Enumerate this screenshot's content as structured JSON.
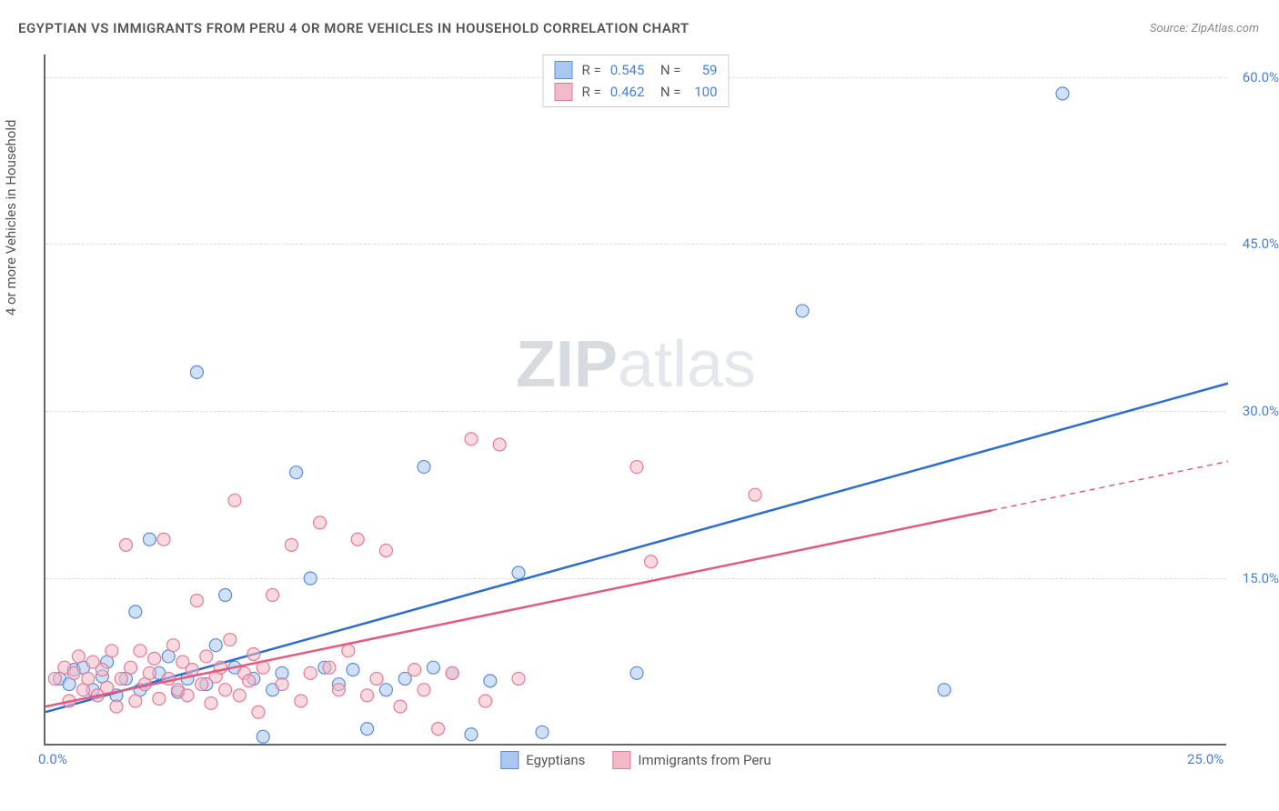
{
  "title": "EGYPTIAN VS IMMIGRANTS FROM PERU 4 OR MORE VEHICLES IN HOUSEHOLD CORRELATION CHART",
  "source_prefix": "Source: ",
  "source": "ZipAtlas.com",
  "y_axis_label": "4 or more Vehicles in Household",
  "watermark_a": "ZIP",
  "watermark_b": "atlas",
  "chart": {
    "type": "scatter",
    "xlim": [
      0,
      25
    ],
    "ylim": [
      0,
      62
    ],
    "x_ticks": [
      {
        "v": 0,
        "label": "0.0%"
      },
      {
        "v": 25,
        "label": "25.0%"
      }
    ],
    "y_ticks": [
      {
        "v": 15,
        "label": "15.0%"
      },
      {
        "v": 30,
        "label": "30.0%"
      },
      {
        "v": 45,
        "label": "45.0%"
      },
      {
        "v": 60,
        "label": "60.0%"
      }
    ],
    "grid_color": "#dddddd",
    "background": "#ffffff",
    "marker_radius": 7,
    "marker_opacity": 0.55,
    "series": [
      {
        "name": "Egyptians",
        "fill": "#a9c7ef",
        "stroke": "#5b8dd6",
        "line_color": "#2d6cd0",
        "R": "0.545",
        "N": "59",
        "trend": {
          "x1": 0,
          "y1": 3.0,
          "x2": 25,
          "y2": 32.5,
          "dash_from_x": 25
        },
        "points": [
          [
            0.3,
            6.0
          ],
          [
            0.5,
            5.5
          ],
          [
            0.6,
            6.8
          ],
          [
            0.8,
            7.0
          ],
          [
            1.0,
            5.0
          ],
          [
            1.2,
            6.2
          ],
          [
            1.3,
            7.5
          ],
          [
            1.5,
            4.5
          ],
          [
            1.7,
            6.0
          ],
          [
            1.9,
            12.0
          ],
          [
            2.0,
            5.0
          ],
          [
            2.2,
            18.5
          ],
          [
            2.4,
            6.5
          ],
          [
            2.6,
            8.0
          ],
          [
            2.8,
            4.8
          ],
          [
            3.0,
            6.0
          ],
          [
            3.2,
            33.5
          ],
          [
            3.4,
            5.5
          ],
          [
            3.6,
            9.0
          ],
          [
            3.8,
            13.5
          ],
          [
            4.0,
            7.0
          ],
          [
            4.4,
            6.0
          ],
          [
            4.6,
            0.8
          ],
          [
            4.8,
            5.0
          ],
          [
            5.0,
            6.5
          ],
          [
            5.3,
            24.5
          ],
          [
            5.6,
            15.0
          ],
          [
            5.9,
            7.0
          ],
          [
            6.2,
            5.5
          ],
          [
            6.5,
            6.8
          ],
          [
            6.8,
            1.5
          ],
          [
            7.2,
            5.0
          ],
          [
            7.6,
            6.0
          ],
          [
            8.0,
            25.0
          ],
          [
            8.2,
            7.0
          ],
          [
            8.6,
            6.5
          ],
          [
            9.0,
            1.0
          ],
          [
            9.4,
            5.8
          ],
          [
            10.0,
            15.5
          ],
          [
            10.5,
            1.2
          ],
          [
            12.5,
            6.5
          ],
          [
            16.0,
            39.0
          ],
          [
            19.0,
            5.0
          ],
          [
            21.5,
            58.5
          ]
        ]
      },
      {
        "name": "Immigrants from Peru",
        "fill": "#f4b9c7",
        "stroke": "#e77a96",
        "line_color": "#e35a7e",
        "R": "0.462",
        "N": "100",
        "trend": {
          "x1": 0,
          "y1": 3.5,
          "x2": 25,
          "y2": 25.5,
          "dash_from_x": 20
        },
        "points": [
          [
            0.2,
            6.0
          ],
          [
            0.4,
            7.0
          ],
          [
            0.5,
            4.0
          ],
          [
            0.6,
            6.5
          ],
          [
            0.7,
            8.0
          ],
          [
            0.8,
            5.0
          ],
          [
            0.9,
            6.0
          ],
          [
            1.0,
            7.5
          ],
          [
            1.1,
            4.5
          ],
          [
            1.2,
            6.8
          ],
          [
            1.3,
            5.2
          ],
          [
            1.4,
            8.5
          ],
          [
            1.5,
            3.5
          ],
          [
            1.6,
            6.0
          ],
          [
            1.7,
            18.0
          ],
          [
            1.8,
            7.0
          ],
          [
            1.9,
            4.0
          ],
          [
            2.0,
            8.5
          ],
          [
            2.1,
            5.5
          ],
          [
            2.2,
            6.5
          ],
          [
            2.3,
            7.8
          ],
          [
            2.4,
            4.2
          ],
          [
            2.5,
            18.5
          ],
          [
            2.6,
            6.0
          ],
          [
            2.7,
            9.0
          ],
          [
            2.8,
            5.0
          ],
          [
            2.9,
            7.5
          ],
          [
            3.0,
            4.5
          ],
          [
            3.1,
            6.8
          ],
          [
            3.2,
            13.0
          ],
          [
            3.3,
            5.5
          ],
          [
            3.4,
            8.0
          ],
          [
            3.5,
            3.8
          ],
          [
            3.6,
            6.2
          ],
          [
            3.7,
            7.0
          ],
          [
            3.8,
            5.0
          ],
          [
            3.9,
            9.5
          ],
          [
            4.0,
            22.0
          ],
          [
            4.1,
            4.5
          ],
          [
            4.2,
            6.5
          ],
          [
            4.3,
            5.8
          ],
          [
            4.4,
            8.2
          ],
          [
            4.5,
            3.0
          ],
          [
            4.6,
            7.0
          ],
          [
            4.8,
            13.5
          ],
          [
            5.0,
            5.5
          ],
          [
            5.2,
            18.0
          ],
          [
            5.4,
            4.0
          ],
          [
            5.6,
            6.5
          ],
          [
            5.8,
            20.0
          ],
          [
            6.0,
            7.0
          ],
          [
            6.2,
            5.0
          ],
          [
            6.4,
            8.5
          ],
          [
            6.6,
            18.5
          ],
          [
            6.8,
            4.5
          ],
          [
            7.0,
            6.0
          ],
          [
            7.2,
            17.5
          ],
          [
            7.5,
            3.5
          ],
          [
            7.8,
            6.8
          ],
          [
            8.0,
            5.0
          ],
          [
            8.3,
            1.5
          ],
          [
            8.6,
            6.5
          ],
          [
            9.0,
            27.5
          ],
          [
            9.3,
            4.0
          ],
          [
            9.6,
            27.0
          ],
          [
            10.0,
            6.0
          ],
          [
            12.5,
            25.0
          ],
          [
            12.8,
            16.5
          ],
          [
            15.0,
            22.5
          ]
        ]
      }
    ]
  },
  "bottom_legend": [
    {
      "label": "Egyptians",
      "fill": "#a9c7ef",
      "stroke": "#5b8dd6"
    },
    {
      "label": "Immigrants from Peru",
      "fill": "#f4b9c7",
      "stroke": "#e77a96"
    }
  ]
}
